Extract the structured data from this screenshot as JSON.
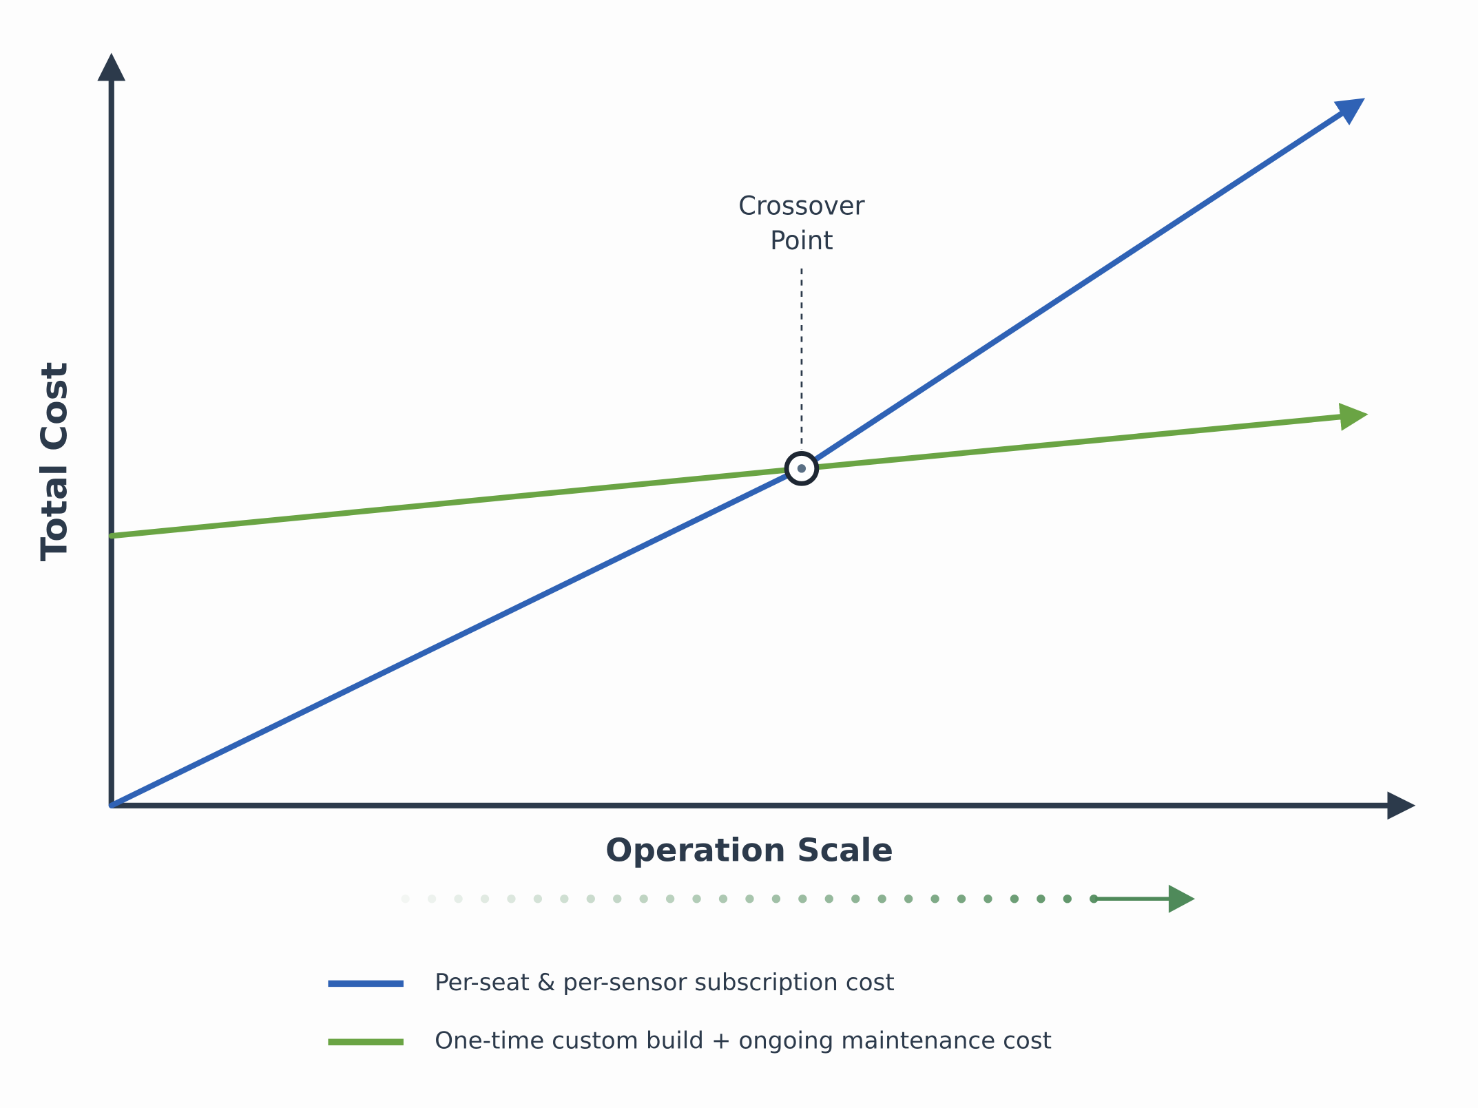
{
  "chart_data": {
    "type": "line",
    "y_label": "Total Cost",
    "x_label": "Operation Scale",
    "x": [
      0,
      53,
      95
    ],
    "xlim": [
      0,
      100
    ],
    "ylim": [
      0,
      100
    ],
    "series": [
      {
        "name": "Per-seat & per-sensor subscription cost",
        "color": "#2f62b5",
        "values": [
          0,
          45,
          93
        ]
      },
      {
        "name": "One-time custom build + ongoing maintenance cost",
        "color": "#6aa444",
        "values": [
          36,
          45,
          52
        ]
      }
    ],
    "annotation": {
      "lines": [
        "Crossover",
        "Point"
      ],
      "x": 53,
      "y": 45
    }
  }
}
